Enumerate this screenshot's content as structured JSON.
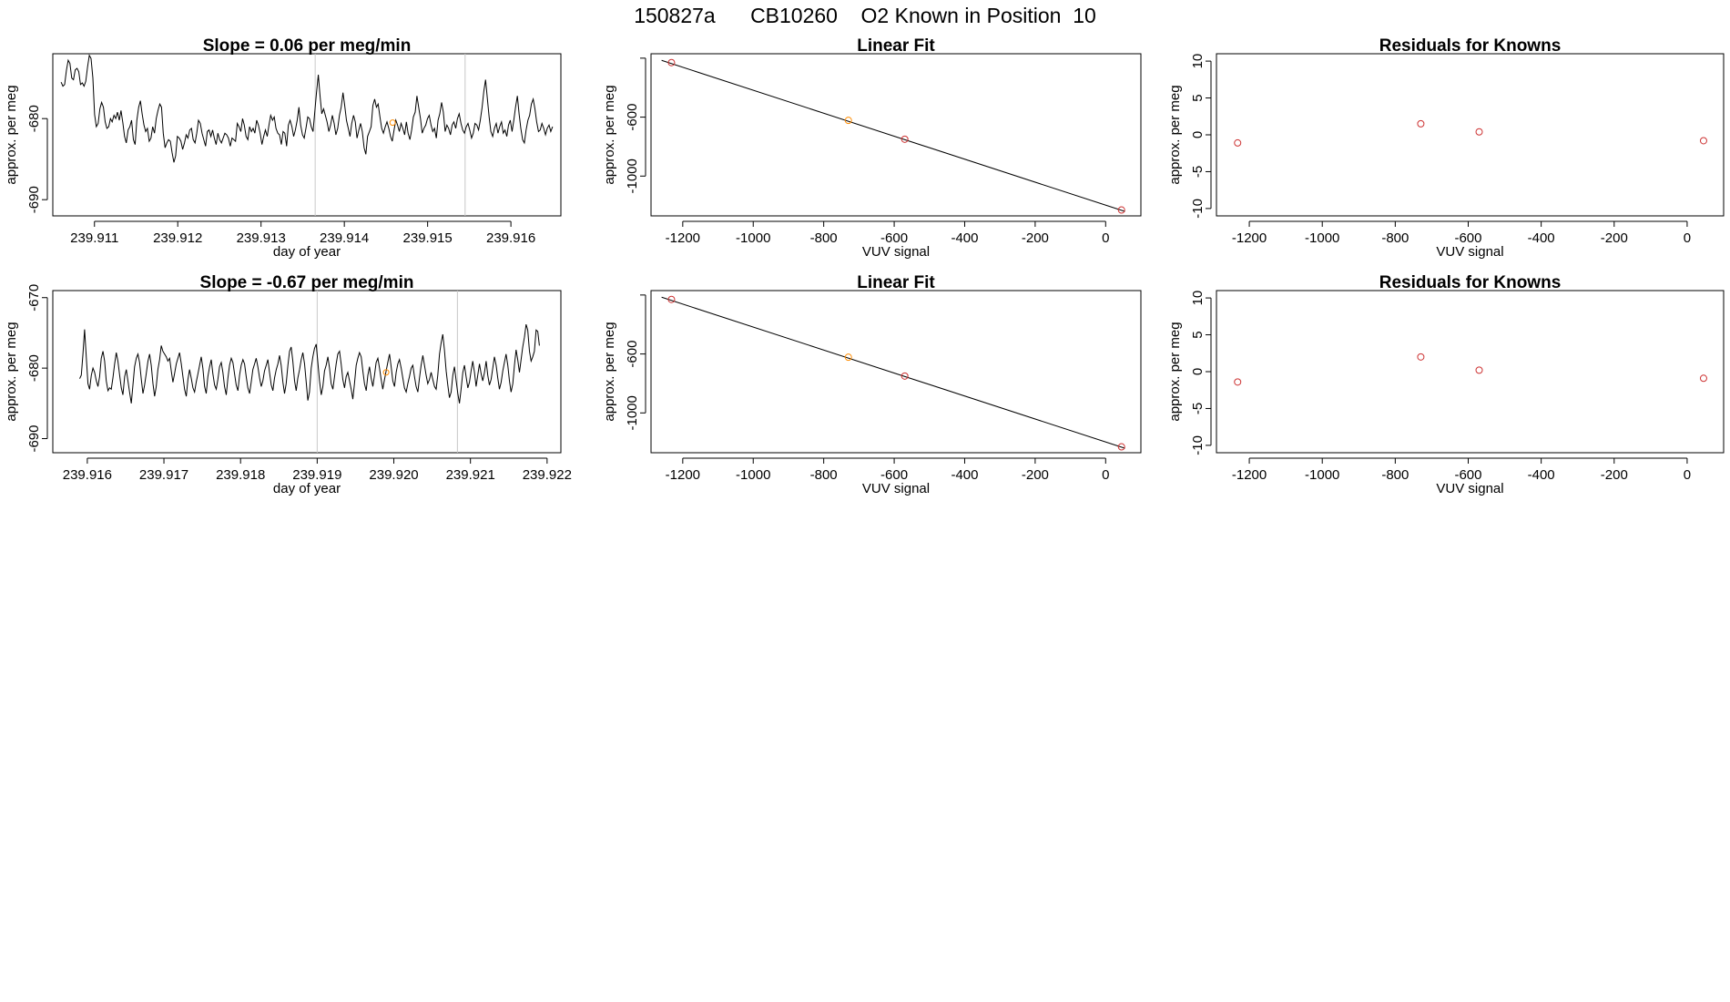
{
  "figure": {
    "supertitle": "150827a      CB10260    O2 Known in Position  10"
  },
  "colors": {
    "line": "#000000",
    "reference_lines": "#c8c8c8",
    "point_known": "#cd3333",
    "point_position": "#ff8c00"
  },
  "chart_data": [
    {
      "type": "line",
      "title": "Slope =  0.06  per meg/min",
      "xlabel": "day of year",
      "ylabel": "approx. per meg",
      "xlim": [
        239.9105,
        239.9166
      ],
      "ylim": [
        -692,
        -672
      ],
      "xticks": [
        239.911,
        239.912,
        239.913,
        239.914,
        239.915,
        239.916
      ],
      "xtick_labels": [
        "239.911",
        "239.912",
        "239.913",
        "239.914",
        "239.915",
        "239.916"
      ],
      "yticks": [
        -690,
        -680
      ],
      "ytick_labels": [
        "-690",
        "-680"
      ],
      "vlines": [
        239.91365,
        239.91545
      ],
      "highlight_point": {
        "x": 239.91458,
        "y": -680.5
      },
      "series": [
        {
          "name": "per meg trace",
          "x0": 239.9106,
          "x1": 239.9165,
          "values": [
            -675.5,
            -676.0,
            -675.8,
            -674.0,
            -672.8,
            -673.2,
            -675.0,
            -675.2,
            -674.0,
            -673.8,
            -674.2,
            -675.8,
            -675.6,
            -676.0,
            -675.4,
            -673.6,
            -672.2,
            -672.6,
            -675.0,
            -679.5,
            -681.0,
            -680.6,
            -678.8,
            -678.0,
            -678.6,
            -680.4,
            -681.2,
            -681.0,
            -680.0,
            -680.4,
            -679.6,
            -680.0,
            -679.2,
            -680.2,
            -679.0,
            -680.5,
            -682.2,
            -683.0,
            -681.4,
            -681.0,
            -680.2,
            -682.6,
            -683.2,
            -680.2,
            -678.6,
            -677.8,
            -679.4,
            -680.8,
            -681.6,
            -681.2,
            -682.8,
            -682.4,
            -681.0,
            -681.8,
            -680.0,
            -679.0,
            -678.2,
            -678.6,
            -681.8,
            -683.6,
            -683.0,
            -682.6,
            -682.8,
            -684.2,
            -685.4,
            -684.6,
            -682.2,
            -682.4,
            -682.8,
            -683.8,
            -683.0,
            -682.0,
            -682.4,
            -681.4,
            -681.2,
            -682.6,
            -683.0,
            -681.8,
            -680.2,
            -680.6,
            -681.8,
            -682.6,
            -683.4,
            -681.6,
            -681.4,
            -682.2,
            -681.4,
            -682.4,
            -683.2,
            -681.8,
            -682.6,
            -683.0,
            -682.4,
            -681.8,
            -682.0,
            -682.4,
            -683.4,
            -682.4,
            -682.6,
            -682.8,
            -680.6,
            -681.0,
            -681.6,
            -680.0,
            -680.8,
            -682.2,
            -682.6,
            -681.0,
            -681.6,
            -681.2,
            -681.8,
            -680.2,
            -680.8,
            -681.8,
            -683.2,
            -682.2,
            -681.4,
            -682.2,
            -680.8,
            -679.6,
            -680.2,
            -679.8,
            -681.2,
            -681.8,
            -682.0,
            -683.2,
            -681.6,
            -681.8,
            -683.4,
            -680.8,
            -680.2,
            -681.0,
            -682.2,
            -681.4,
            -680.2,
            -678.6,
            -680.8,
            -682.0,
            -682.4,
            -681.2,
            -679.8,
            -680.0,
            -681.0,
            -681.6,
            -679.2,
            -676.8,
            -674.6,
            -677.2,
            -679.4,
            -678.8,
            -679.6,
            -680.4,
            -681.6,
            -680.8,
            -679.6,
            -680.6,
            -682.0,
            -681.2,
            -679.6,
            -678.6,
            -676.8,
            -678.4,
            -680.2,
            -681.2,
            -682.2,
            -680.6,
            -679.6,
            -680.4,
            -682.4,
            -681.4,
            -680.6,
            -681.6,
            -683.6,
            -684.4,
            -682.2,
            -681.6,
            -681.0,
            -678.4,
            -677.6,
            -678.6,
            -678.2,
            -679.8,
            -681.2,
            -681.8,
            -681.0,
            -680.4,
            -681.2,
            -682.2,
            -682.8,
            -681.4,
            -680.2,
            -680.8,
            -681.6,
            -680.6,
            -681.2,
            -682.0,
            -680.4,
            -681.8,
            -682.6,
            -681.4,
            -679.8,
            -679.2,
            -677.2,
            -678.6,
            -680.0,
            -681.8,
            -681.2,
            -680.8,
            -680.0,
            -679.6,
            -680.8,
            -681.6,
            -681.2,
            -682.4,
            -680.2,
            -679.4,
            -678.0,
            -679.2,
            -681.6,
            -680.8,
            -681.2,
            -682.0,
            -680.8,
            -680.4,
            -681.2,
            -680.0,
            -679.4,
            -680.6,
            -681.4,
            -681.8,
            -681.0,
            -680.6,
            -681.4,
            -682.4,
            -681.8,
            -680.6,
            -680.8,
            -681.4,
            -680.2,
            -678.6,
            -676.6,
            -675.2,
            -677.6,
            -679.8,
            -681.6,
            -682.2,
            -681.2,
            -680.6,
            -681.8,
            -681.0,
            -680.4,
            -681.8,
            -681.4,
            -682.2,
            -680.8,
            -680.2,
            -681.6,
            -680.2,
            -678.6,
            -677.2,
            -679.4,
            -681.2,
            -682.6,
            -683.0,
            -681.4,
            -680.2,
            -679.6,
            -678.2,
            -677.6,
            -678.8,
            -680.4,
            -681.6,
            -681.4,
            -680.6,
            -681.2,
            -682.0,
            -681.2,
            -680.8,
            -681.6,
            -681.0
          ]
        }
      ]
    },
    {
      "type": "scatter",
      "title": "Linear Fit",
      "xlabel": "VUV signal",
      "ylabel": "approx. per meg",
      "xlim": [
        -1290,
        100
      ],
      "ylim": [
        -1270,
        -170
      ],
      "xticks": [
        -1200,
        -1000,
        -800,
        -600,
        -400,
        -200,
        0
      ],
      "xtick_labels": [
        "-1200",
        "-1000",
        "-800",
        "-600",
        "-400",
        "-200",
        "0"
      ],
      "yticks": [
        -1000,
        -600,
        -200
      ],
      "ytick_labels": [
        "-1000",
        "-600",
        ""
      ],
      "fit_line": {
        "x": [
          -1260,
          55
        ],
        "y": [
          -215,
          -1240
        ]
      },
      "points": [
        {
          "x": -1232,
          "y": -230,
          "kind": "known"
        },
        {
          "x": -730,
          "y": -622,
          "kind": "position"
        },
        {
          "x": -570,
          "y": -750,
          "kind": "known"
        },
        {
          "x": 45,
          "y": -1230,
          "kind": "known"
        }
      ]
    },
    {
      "type": "scatter",
      "title": "Residuals for Knowns",
      "xlabel": "VUV signal",
      "ylabel": "approx. per meg",
      "xlim": [
        -1290,
        100
      ],
      "ylim": [
        -11,
        11
      ],
      "xticks": [
        -1200,
        -1000,
        -800,
        -600,
        -400,
        -200,
        0
      ],
      "xtick_labels": [
        "-1200",
        "-1000",
        "-800",
        "-600",
        "-400",
        "-200",
        "0"
      ],
      "yticks": [
        -10,
        -5,
        0,
        5,
        10
      ],
      "ytick_labels": [
        "-10",
        "-5",
        "0",
        "5",
        "10"
      ],
      "points": [
        {
          "x": -1232,
          "y": -1.1,
          "kind": "known"
        },
        {
          "x": -730,
          "y": 1.5,
          "kind": "known"
        },
        {
          "x": -570,
          "y": 0.4,
          "kind": "known"
        },
        {
          "x": 45,
          "y": -0.8,
          "kind": "known"
        }
      ]
    },
    {
      "type": "line",
      "title": "Slope =  -0.67  per meg/min",
      "xlabel": "day of year",
      "ylabel": "approx. per meg",
      "xlim": [
        239.91555,
        239.92218
      ],
      "ylim": [
        -692,
        -669
      ],
      "xticks": [
        239.916,
        239.917,
        239.918,
        239.919,
        239.92,
        239.921,
        239.922
      ],
      "xtick_labels": [
        "239.916",
        "239.917",
        "239.918",
        "239.919",
        "239.920",
        "239.921",
        "239.922"
      ],
      "yticks": [
        -690,
        -680,
        -670
      ],
      "ytick_labels": [
        "-690",
        "-680",
        "-670"
      ],
      "vlines": [
        239.919,
        239.92083
      ],
      "highlight_point": {
        "x": 239.9199,
        "y": -680.6
      },
      "series": [
        {
          "name": "per meg trace",
          "x0": 239.9159,
          "x1": 239.9219,
          "values": [
            -681.5,
            -681.0,
            -678.0,
            -674.5,
            -678.5,
            -682.2,
            -683.0,
            -681.0,
            -680.0,
            -680.6,
            -681.8,
            -682.6,
            -681.2,
            -678.6,
            -677.6,
            -679.0,
            -681.8,
            -683.2,
            -682.8,
            -683.0,
            -681.4,
            -679.4,
            -677.8,
            -679.0,
            -681.0,
            -682.8,
            -683.8,
            -681.2,
            -680.2,
            -681.8,
            -683.4,
            -685.0,
            -682.4,
            -679.8,
            -678.6,
            -678.0,
            -679.2,
            -681.6,
            -683.6,
            -682.4,
            -680.8,
            -679.0,
            -678.0,
            -679.6,
            -682.2,
            -684.0,
            -682.6,
            -680.2,
            -678.8,
            -676.8,
            -677.6,
            -678.0,
            -678.4,
            -679.0,
            -678.6,
            -680.4,
            -682.0,
            -680.8,
            -679.4,
            -678.6,
            -677.8,
            -679.4,
            -681.2,
            -683.0,
            -684.0,
            -681.6,
            -680.2,
            -681.4,
            -682.8,
            -683.4,
            -682.0,
            -680.8,
            -679.6,
            -678.4,
            -680.0,
            -682.6,
            -683.6,
            -681.2,
            -679.8,
            -678.8,
            -680.8,
            -682.4,
            -683.0,
            -681.6,
            -679.8,
            -679.2,
            -680.6,
            -682.6,
            -683.8,
            -681.4,
            -679.6,
            -678.6,
            -679.2,
            -680.8,
            -682.4,
            -683.2,
            -681.0,
            -679.6,
            -678.8,
            -679.4,
            -681.2,
            -682.8,
            -683.6,
            -682.0,
            -680.2,
            -679.4,
            -678.6,
            -679.8,
            -681.4,
            -682.6,
            -681.8,
            -680.4,
            -679.6,
            -678.8,
            -680.6,
            -682.4,
            -683.2,
            -681.4,
            -680.2,
            -679.4,
            -678.2,
            -679.6,
            -682.0,
            -683.6,
            -682.2,
            -679.6,
            -677.6,
            -677.0,
            -679.0,
            -681.8,
            -683.2,
            -681.4,
            -680.2,
            -678.8,
            -677.8,
            -679.4,
            -682.0,
            -684.6,
            -683.4,
            -680.0,
            -678.4,
            -677.2,
            -676.6,
            -679.2,
            -681.8,
            -683.8,
            -682.6,
            -680.4,
            -679.6,
            -678.4,
            -680.0,
            -682.2,
            -683.0,
            -681.2,
            -679.4,
            -678.0,
            -677.6,
            -679.4,
            -681.6,
            -682.8,
            -681.2,
            -680.6,
            -681.8,
            -683.0,
            -684.4,
            -682.2,
            -679.6,
            -678.6,
            -677.8,
            -678.4,
            -680.4,
            -682.2,
            -683.2,
            -681.0,
            -679.8,
            -681.4,
            -682.6,
            -681.0,
            -679.2,
            -678.6,
            -680.0,
            -681.6,
            -683.0,
            -681.6,
            -680.4,
            -679.2,
            -678.0,
            -679.8,
            -681.8,
            -682.6,
            -680.6,
            -679.4,
            -678.8,
            -680.0,
            -681.4,
            -682.8,
            -683.4,
            -682.2,
            -681.2,
            -680.0,
            -679.6,
            -681.2,
            -682.6,
            -683.4,
            -681.4,
            -679.6,
            -678.2,
            -679.6,
            -681.0,
            -682.2,
            -681.6,
            -680.6,
            -681.6,
            -682.6,
            -683.0,
            -681.0,
            -678.0,
            -676.4,
            -675.2,
            -677.4,
            -680.4,
            -682.4,
            -684.2,
            -683.4,
            -681.0,
            -679.8,
            -681.8,
            -683.6,
            -685.0,
            -683.0,
            -680.6,
            -679.6,
            -681.2,
            -682.8,
            -682.0,
            -680.4,
            -679.0,
            -680.6,
            -682.6,
            -681.0,
            -679.4,
            -680.8,
            -681.8,
            -680.6,
            -679.0,
            -681.0,
            -682.4,
            -681.6,
            -680.0,
            -678.4,
            -679.6,
            -681.4,
            -683.0,
            -682.0,
            -680.4,
            -679.2,
            -678.0,
            -679.6,
            -681.8,
            -683.4,
            -682.2,
            -679.6,
            -677.4,
            -678.8,
            -680.6,
            -678.8,
            -677.0,
            -675.6,
            -673.8,
            -674.6,
            -677.6,
            -679.0,
            -678.4,
            -677.6,
            -674.6,
            -674.8,
            -676.8
          ]
        }
      ]
    },
    {
      "type": "scatter",
      "title": "Linear Fit",
      "xlabel": "VUV signal",
      "ylabel": "approx. per meg",
      "xlim": [
        -1290,
        100
      ],
      "ylim": [
        -1270,
        -170
      ],
      "xticks": [
        -1200,
        -1000,
        -800,
        -600,
        -400,
        -200,
        0
      ],
      "xtick_labels": [
        "-1200",
        "-1000",
        "-800",
        "-600",
        "-400",
        "-200",
        "0"
      ],
      "yticks": [
        -1000,
        -600,
        -200
      ],
      "ytick_labels": [
        "-1000",
        "-600",
        ""
      ],
      "fit_line": {
        "x": [
          -1260,
          55
        ],
        "y": [
          -215,
          -1240
        ]
      },
      "points": [
        {
          "x": -1232,
          "y": -230,
          "kind": "known"
        },
        {
          "x": -730,
          "y": -622,
          "kind": "position"
        },
        {
          "x": -570,
          "y": -750,
          "kind": "known"
        },
        {
          "x": 45,
          "y": -1230,
          "kind": "known"
        }
      ]
    },
    {
      "type": "scatter",
      "title": "Residuals for Knowns",
      "xlabel": "VUV signal",
      "ylabel": "approx. per meg",
      "xlim": [
        -1290,
        100
      ],
      "ylim": [
        -11,
        11
      ],
      "xticks": [
        -1200,
        -1000,
        -800,
        -600,
        -400,
        -200,
        0
      ],
      "xtick_labels": [
        "-1200",
        "-1000",
        "-800",
        "-600",
        "-400",
        "-200",
        "0"
      ],
      "yticks": [
        -10,
        -5,
        0,
        5,
        10
      ],
      "ytick_labels": [
        "-10",
        "-5",
        "0",
        "5",
        "10"
      ],
      "points": [
        {
          "x": -1232,
          "y": -1.4,
          "kind": "known"
        },
        {
          "x": -730,
          "y": 2.0,
          "kind": "known"
        },
        {
          "x": -570,
          "y": 0.2,
          "kind": "known"
        },
        {
          "x": 45,
          "y": -0.9,
          "kind": "known"
        }
      ]
    }
  ]
}
